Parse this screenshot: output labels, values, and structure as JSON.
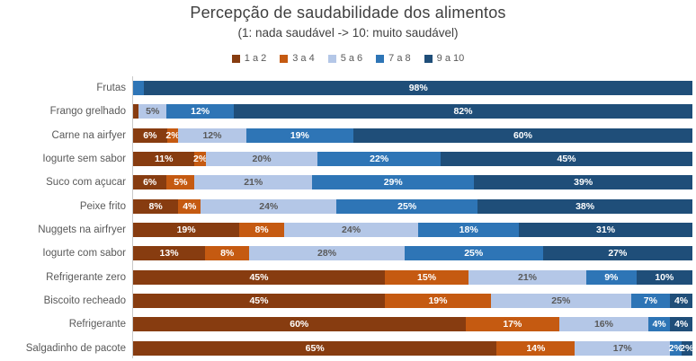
{
  "chart_data": {
    "type": "bar",
    "variant": "horizontal-stacked-100",
    "title": "Percepção de saudabilidade dos alimentos",
    "subtitle": "(1: nada saudável -> 10: muito saudável)",
    "legend_position": "top",
    "axis": {
      "value_range": [
        0,
        100
      ],
      "unit": "%",
      "gridlines": false,
      "axis_line_color": "#c9c9c9"
    },
    "text_colors": {
      "title": "#3f3f3f",
      "subtitle": "#404040",
      "category_labels": "#595959",
      "legend": "#595959"
    },
    "categories": [
      "Frutas",
      "Frango grelhado",
      "Carne na airfyer",
      "Iogurte sem sabor",
      "Suco com açucar",
      "Peixe frito",
      "Nuggets na airfryer",
      "Iogurte com sabor",
      "Refrigerante zero",
      "Biscoito recheado",
      "Refrigerante",
      "Salgadinho de pacote"
    ],
    "series": [
      {
        "name": "1 a 2",
        "color": "#873c10",
        "label_color": "#ffffff",
        "values": [
          0,
          1,
          6,
          11,
          6,
          8,
          19,
          13,
          45,
          45,
          60,
          65
        ],
        "labels": [
          "",
          "",
          "6%",
          "11%",
          "6%",
          "8%",
          "19%",
          "13%",
          "45%",
          "45%",
          "60%",
          "65%"
        ]
      },
      {
        "name": "3 a 4",
        "color": "#c55a11",
        "label_color": "#ffffff",
        "values": [
          0,
          0,
          2,
          2,
          5,
          4,
          8,
          8,
          15,
          19,
          17,
          14
        ],
        "labels": [
          "",
          "",
          "2%",
          "2%",
          "5%",
          "4%",
          "8%",
          "8%",
          "15%",
          "19%",
          "17%",
          "14%"
        ]
      },
      {
        "name": "5 a 6",
        "color": "#b4c7e7",
        "label_color": "#595959",
        "values": [
          0,
          5,
          12,
          20,
          21,
          24,
          24,
          28,
          21,
          25,
          16,
          17
        ],
        "labels": [
          "",
          "5%",
          "12%",
          "20%",
          "21%",
          "24%",
          "24%",
          "28%",
          "21%",
          "25%",
          "16%",
          "17%"
        ]
      },
      {
        "name": "7 a 8",
        "color": "#2e75b6",
        "label_color": "#ffffff",
        "values": [
          2,
          12,
          19,
          22,
          29,
          25,
          18,
          25,
          9,
          7,
          4,
          2
        ],
        "labels": [
          "",
          "12%",
          "19%",
          "22%",
          "29%",
          "25%",
          "18%",
          "25%",
          "9%",
          "7%",
          "4%",
          "2%"
        ]
      },
      {
        "name": "9 a 10",
        "color": "#1f4e79",
        "label_color": "#ffffff",
        "values": [
          98,
          82,
          60,
          45,
          39,
          38,
          31,
          27,
          10,
          4,
          4,
          2
        ],
        "labels": [
          "98%",
          "82%",
          "60%",
          "45%",
          "39%",
          "38%",
          "31%",
          "27%",
          "10%",
          "4%",
          "4%",
          "2%"
        ]
      }
    ]
  }
}
